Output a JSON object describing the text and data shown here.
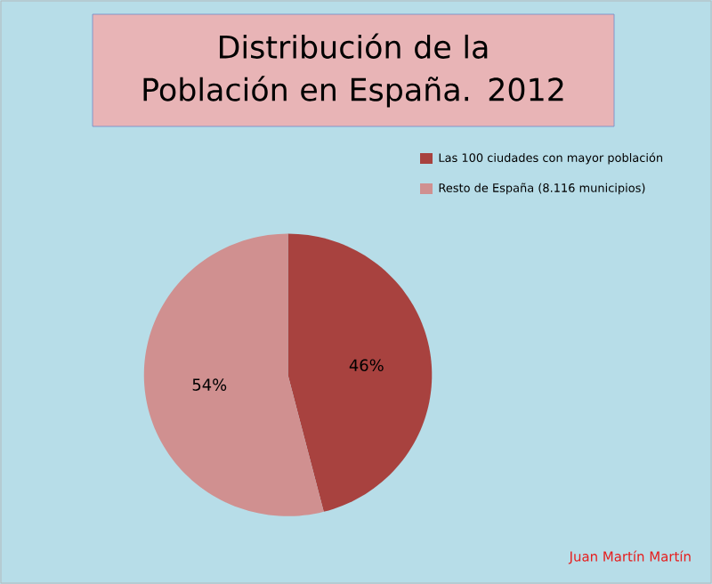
{
  "chart_data": {
    "type": "pie",
    "title": "Distribución de la Población en España. 2012",
    "categories": [
      "Las  100 ciudades con mayor población",
      "Resto de España (8.116 municipios)"
    ],
    "values": [
      46,
      54
    ],
    "colors": [
      "#a8423f",
      "#d09090"
    ],
    "value_labels": [
      "46%",
      "54%"
    ],
    "legend": "top right",
    "annotations": [
      "Juan Martín Martín"
    ]
  }
}
